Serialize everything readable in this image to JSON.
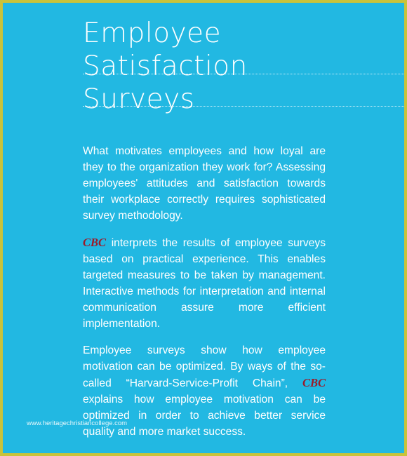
{
  "title": {
    "line1": "Employee",
    "line2": "Satisfaction",
    "line3": "Surveys"
  },
  "paragraph1": "What motivates employees and how loyal are they to the organization they work for? Assessing employees' attitudes and satisfaction towards their workplace correctly requires sophisticated survey methodology.",
  "paragraph2": {
    "brand": "CBC",
    "text": " interprets the results of employee surveys based on practical experience. This enables targeted measures to be taken by management. Interactive methods for interpretation and internal communication assure more efficient implementation."
  },
  "paragraph3": {
    "text_before": "Employee surveys show how employee motivation can be optimized. By ways of the so-called “Harvard-Service-Profit Chain”, ",
    "brand": "CBC",
    "text_after": " explains how employee motivation can be optimized in order to achieve better service quality and more market success."
  },
  "watermark": "www.heritagechristiancollege.com",
  "colors": {
    "background_panel": "#22b8e2",
    "border": "#c9c33a",
    "brand_red": "#9b1b2a",
    "text": "#ffffff"
  }
}
